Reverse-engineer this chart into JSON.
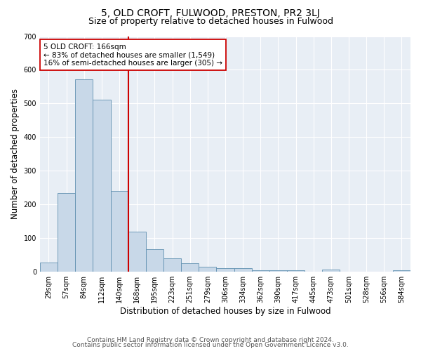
{
  "title": "5, OLD CROFT, FULWOOD, PRESTON, PR2 3LJ",
  "subtitle": "Size of property relative to detached houses in Fulwood",
  "xlabel": "Distribution of detached houses by size in Fulwood",
  "ylabel": "Number of detached properties",
  "categories": [
    "29sqm",
    "57sqm",
    "84sqm",
    "112sqm",
    "140sqm",
    "168sqm",
    "195sqm",
    "223sqm",
    "251sqm",
    "279sqm",
    "306sqm",
    "334sqm",
    "362sqm",
    "390sqm",
    "417sqm",
    "445sqm",
    "473sqm",
    "501sqm",
    "528sqm",
    "556sqm",
    "584sqm"
  ],
  "values": [
    27,
    233,
    572,
    511,
    240,
    120,
    68,
    40,
    25,
    14,
    10,
    10,
    5,
    5,
    5,
    0,
    6,
    0,
    0,
    0,
    5
  ],
  "bar_color": "#c8d8e8",
  "bar_edge_color": "#6090b0",
  "vline_index": 5,
  "vline_color": "#cc0000",
  "annotation_text": "5 OLD CROFT: 166sqm\n← 83% of detached houses are smaller (1,549)\n16% of semi-detached houses are larger (305) →",
  "annotation_box_color": "#ffffff",
  "annotation_box_edge": "#cc0000",
  "ylim": [
    0,
    700
  ],
  "yticks": [
    0,
    100,
    200,
    300,
    400,
    500,
    600,
    700
  ],
  "footer_line1": "Contains HM Land Registry data © Crown copyright and database right 2024.",
  "footer_line2": "Contains public sector information licensed under the Open Government Licence v3.0.",
  "fig_bg_color": "#ffffff",
  "plot_bg_color": "#e8eef5",
  "title_fontsize": 10,
  "subtitle_fontsize": 9,
  "axis_label_fontsize": 8.5,
  "tick_fontsize": 7,
  "footer_fontsize": 6.5,
  "annotation_fontsize": 7.5
}
